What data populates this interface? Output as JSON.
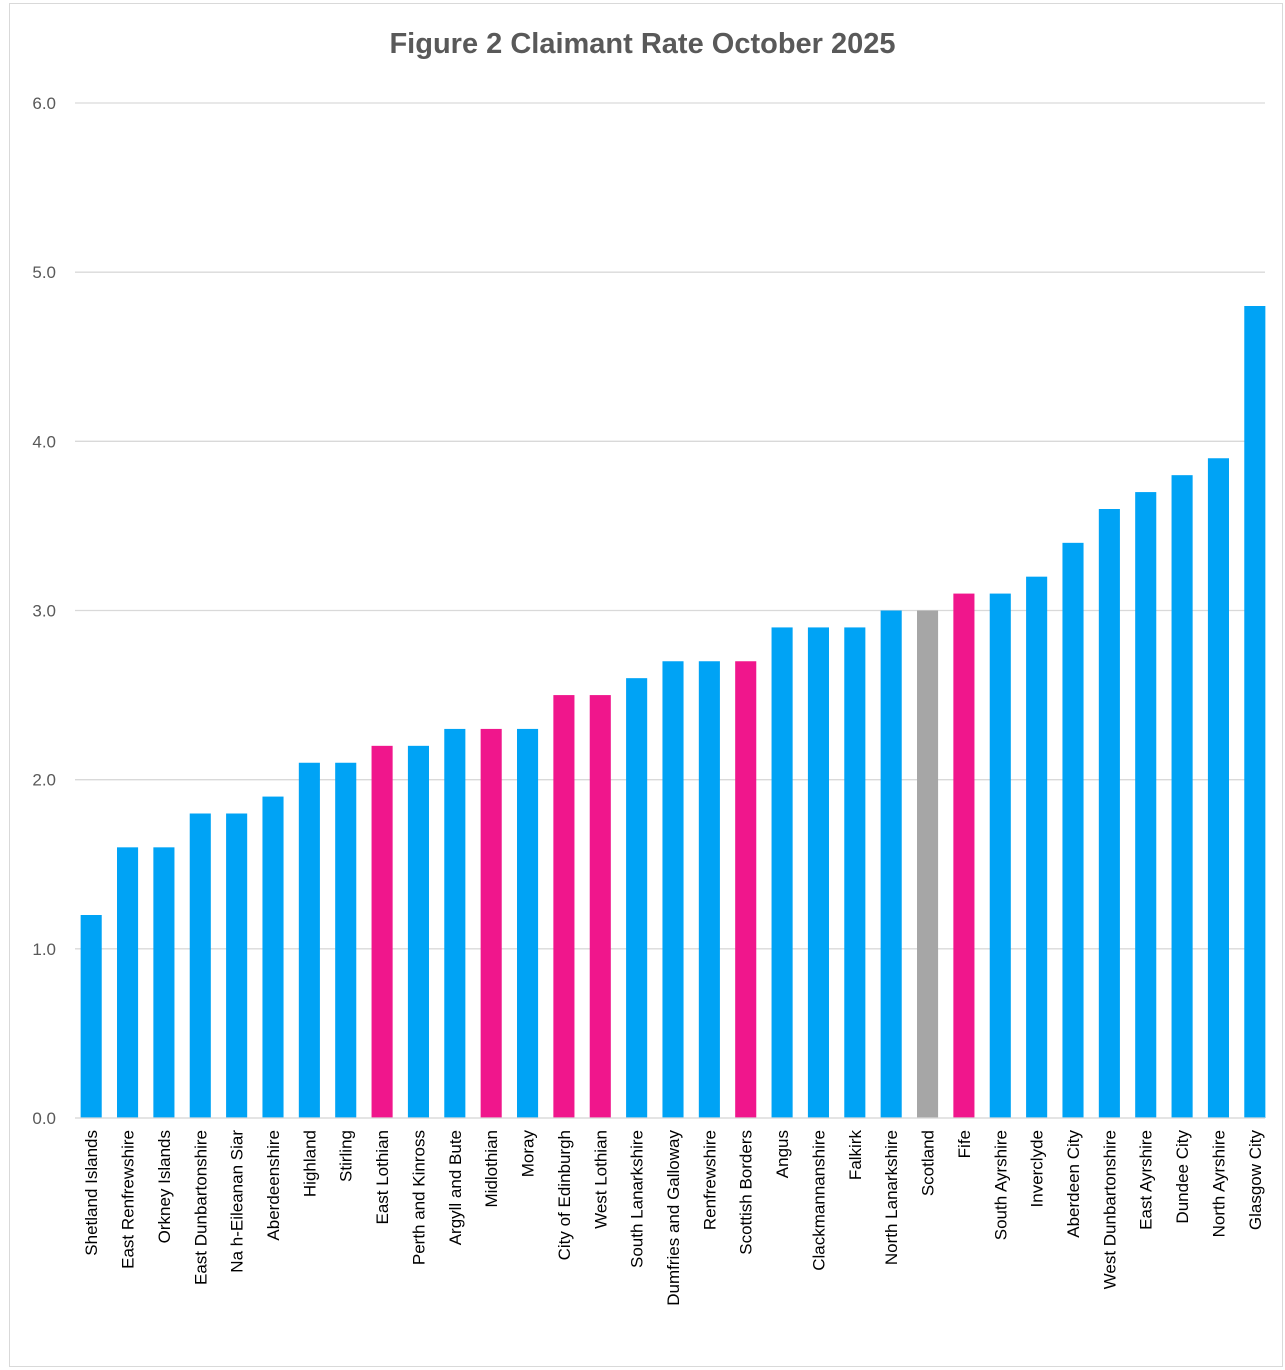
{
  "chart_data": {
    "type": "bar",
    "title": "Figure 2 Claimant Rate October 2025",
    "xlabel": "",
    "ylabel": "",
    "ylim": [
      0,
      6
    ],
    "yticks": [
      "0.0",
      "1.0",
      "2.0",
      "3.0",
      "4.0",
      "5.0",
      "6.0"
    ],
    "grid": true,
    "legend": "none",
    "categories": [
      "Shetland Islands",
      "East Renfrewshire",
      "Orkney Islands",
      "East Dunbartonshire",
      "Na h-Eileanan Siar",
      "Aberdeenshire",
      "Highland",
      "Stirling",
      "East Lothian",
      "Perth and Kinross",
      "Argyll and Bute",
      "Midlothian",
      "Moray",
      "City of Edinburgh",
      "West Lothian",
      "South Lanarkshire",
      "Dumfries and Galloway",
      "Renfrewshire",
      "Scottish Borders",
      "Angus",
      "Clackmannanshire",
      "Falkirk",
      "North Lanarkshire",
      "Scotland",
      "Fife",
      "South Ayrshire",
      "Inverclyde",
      "Aberdeen City",
      "West Dunbartonshire",
      "East Ayrshire",
      "Dundee City",
      "North Ayrshire",
      "Glasgow City"
    ],
    "values": [
      1.2,
      1.6,
      1.6,
      1.8,
      1.8,
      1.9,
      2.1,
      2.1,
      2.2,
      2.2,
      2.3,
      2.3,
      2.3,
      2.5,
      2.5,
      2.6,
      2.7,
      2.7,
      2.7,
      2.9,
      2.9,
      2.9,
      3.0,
      3.0,
      3.1,
      3.1,
      3.2,
      3.4,
      3.6,
      3.7,
      3.8,
      3.9,
      4.8
    ],
    "bar_colors": [
      "#00a3f5",
      "#00a3f5",
      "#00a3f5",
      "#00a3f5",
      "#00a3f5",
      "#00a3f5",
      "#00a3f5",
      "#00a3f5",
      "#f0168c",
      "#00a3f5",
      "#00a3f5",
      "#f0168c",
      "#00a3f5",
      "#f0168c",
      "#f0168c",
      "#00a3f5",
      "#00a3f5",
      "#00a3f5",
      "#f0168c",
      "#00a3f5",
      "#00a3f5",
      "#00a3f5",
      "#00a3f5",
      "#a6a6a6",
      "#f0168c",
      "#00a3f5",
      "#00a3f5",
      "#00a3f5",
      "#00a3f5",
      "#00a3f5",
      "#00a3f5",
      "#00a3f5",
      "#00a3f5"
    ],
    "colors": {
      "default": "#00a3f5",
      "highlight": "#f0168c",
      "scotland": "#a6a6a6",
      "gridline": "#d9d9d9",
      "text": "#595959"
    }
  }
}
